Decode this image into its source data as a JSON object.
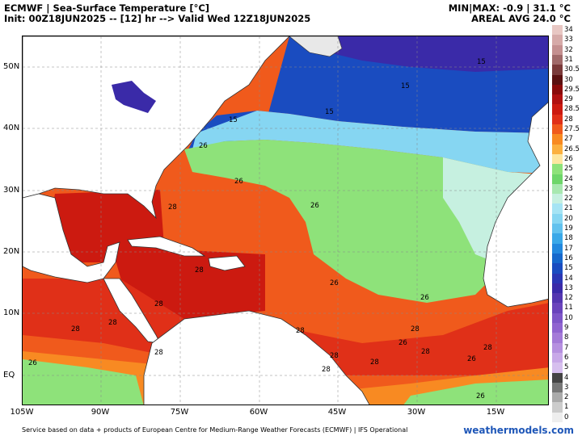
{
  "header": {
    "title": "ECMWF | Sea-Surface Temperature [°C]",
    "init": "Init: 00Z18JUN2025 -- [12] hr --> Valid Wed 12Z18JUN2025",
    "minmax": "MIN|MAX: -0.9 | 31.1 °C",
    "areal_avg": "AREAL AVG 24.0 °C"
  },
  "axes": {
    "lat_labels": [
      "50N",
      "40N",
      "30N",
      "20N",
      "10N",
      "EQ"
    ],
    "lon_labels": [
      "105W",
      "90W",
      "75W",
      "60W",
      "45W",
      "30W",
      "15W"
    ]
  },
  "colorbar": {
    "labels": [
      "34",
      "33",
      "32",
      "31",
      "30.5",
      "30",
      "29.5",
      "29",
      "28.5",
      "28",
      "27.5",
      "27",
      "26.5",
      "26",
      "25",
      "24",
      "23",
      "22",
      "21",
      "20",
      "19",
      "18",
      "17",
      "16",
      "15",
      "14",
      "13",
      "12",
      "11",
      "10",
      "9",
      "8",
      "7",
      "6",
      "5",
      "4",
      "3",
      "2",
      "1",
      "0"
    ],
    "colors": [
      "#e8c7c3",
      "#d6aaa8",
      "#c49090",
      "#a06a6a",
      "#7a3a3a",
      "#5a1010",
      "#8a0a0a",
      "#b01010",
      "#cc1a10",
      "#e03018",
      "#f05a1c",
      "#f88a22",
      "#fbb040",
      "#fde6a0",
      "#8ee27a",
      "#6ed66a",
      "#a8e8b0",
      "#c6f0e0",
      "#a6e4f4",
      "#86d6f2",
      "#62c2ee",
      "#3aa8e8",
      "#2288de",
      "#1668cc",
      "#1a4cc0",
      "#2a36b4",
      "#3a2aa8",
      "#5436b0",
      "#6a44bc",
      "#7e56c8",
      "#9064d0",
      "#a47ad8",
      "#b690e0",
      "#c8a8e8",
      "#d6bfee",
      "#444444",
      "#777777",
      "#aaaaaa",
      "#cccccc",
      "#eeeeee"
    ]
  },
  "map": {
    "sst_labels": [
      "15",
      "15",
      "15",
      "15",
      "26",
      "26",
      "26",
      "26",
      "26",
      "26",
      "26",
      "28",
      "28",
      "28",
      "28",
      "28",
      "28",
      "28",
      "28",
      "28",
      "28",
      "28",
      "28",
      "28",
      "26",
      "26"
    ]
  },
  "footer": {
    "credit": "Service based on data + products of European Centre for Medium-Range Weather Forecasts (ECMWF) | IFS Operational",
    "brand": "weathermodels.com"
  }
}
